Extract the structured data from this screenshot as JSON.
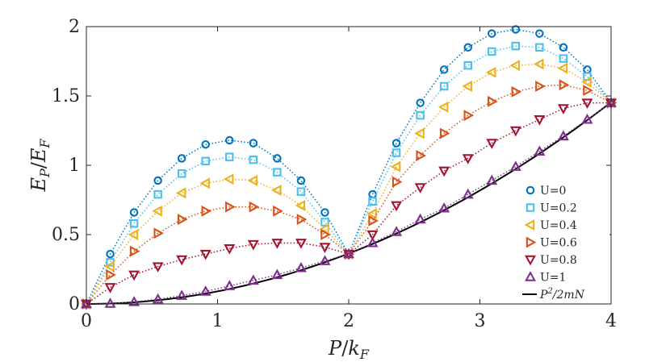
{
  "chart_data": {
    "type": "line",
    "title": "",
    "xlabel": {
      "main": "P",
      "sep": "/",
      "base": "k",
      "sub": "F"
    },
    "ylabel": {
      "main": "E",
      "sub1": "P",
      "sep": "/",
      "base": "E",
      "sub2": "F"
    },
    "xlim": [
      0,
      4
    ],
    "ylim": [
      0,
      2
    ],
    "xticks": [
      0,
      1,
      2,
      3,
      4
    ],
    "xtick_labels": [
      "0",
      "1",
      "2",
      "3",
      "4"
    ],
    "yticks": [
      0,
      0.5,
      1,
      1.5,
      2
    ],
    "ytick_labels": [
      "0",
      "0.5",
      "1",
      "1.5",
      "2"
    ],
    "legend_position": "right-bottom",
    "x": [
      0,
      0.1818,
      0.3636,
      0.5455,
      0.7273,
      0.9091,
      1.0909,
      1.2727,
      1.4545,
      1.6364,
      1.8182,
      2,
      2.1818,
      2.3636,
      2.5455,
      2.7273,
      2.9091,
      3.0909,
      3.2727,
      3.4545,
      3.6364,
      3.8182,
      4
    ],
    "series": [
      {
        "name": "U=0",
        "marker": "circle",
        "color": "#0072bd",
        "values": [
          0,
          0.36,
          0.66,
          0.89,
          1.05,
          1.15,
          1.18,
          1.16,
          1.05,
          0.89,
          0.66,
          0.36,
          0.79,
          1.16,
          1.45,
          1.69,
          1.85,
          1.95,
          1.98,
          1.95,
          1.85,
          1.69,
          1.45
        ]
      },
      {
        "name": "U=0.2",
        "marker": "square",
        "color": "#4dbeee",
        "values": [
          0,
          0.3,
          0.58,
          0.79,
          0.94,
          1.03,
          1.06,
          1.04,
          0.95,
          0.81,
          0.59,
          0.36,
          0.74,
          1.09,
          1.36,
          1.57,
          1.72,
          1.82,
          1.86,
          1.85,
          1.77,
          1.64,
          1.45
        ]
      },
      {
        "name": "U=0.4",
        "marker": "triangle-left",
        "color": "#edb120",
        "values": [
          0,
          0.27,
          0.5,
          0.67,
          0.8,
          0.87,
          0.9,
          0.89,
          0.82,
          0.71,
          0.54,
          0.36,
          0.65,
          0.99,
          1.23,
          1.42,
          1.57,
          1.67,
          1.72,
          1.73,
          1.7,
          1.6,
          1.45
        ]
      },
      {
        "name": "U=0.6",
        "marker": "triangle-right",
        "color": "#d95319",
        "values": [
          0,
          0.21,
          0.38,
          0.51,
          0.61,
          0.67,
          0.7,
          0.7,
          0.67,
          0.61,
          0.5,
          0.36,
          0.6,
          0.88,
          1.07,
          1.23,
          1.36,
          1.46,
          1.53,
          1.57,
          1.58,
          1.54,
          1.45
        ]
      },
      {
        "name": "U=0.8",
        "marker": "triangle-down",
        "color": "#a2142f",
        "values": [
          0,
          0.12,
          0.21,
          0.27,
          0.32,
          0.36,
          0.4,
          0.43,
          0.44,
          0.44,
          0.41,
          0.36,
          0.5,
          0.71,
          0.84,
          0.96,
          1.05,
          1.16,
          1.25,
          1.33,
          1.41,
          1.45,
          1.45
        ]
      },
      {
        "name": "U=1",
        "marker": "triangle-up",
        "color": "#7e2f8e",
        "values": [
          0,
          0.003,
          0.015,
          0.034,
          0.06,
          0.09,
          0.13,
          0.17,
          0.21,
          0.26,
          0.31,
          0.36,
          0.44,
          0.52,
          0.61,
          0.69,
          0.79,
          0.89,
          0.99,
          1.1,
          1.21,
          1.33,
          1.45
        ]
      }
    ],
    "reference_line": {
      "name_main": "P",
      "name_sup": "2",
      "name_rest": "/2mN",
      "color": "#000000",
      "coefficient": 0.0909
    }
  }
}
